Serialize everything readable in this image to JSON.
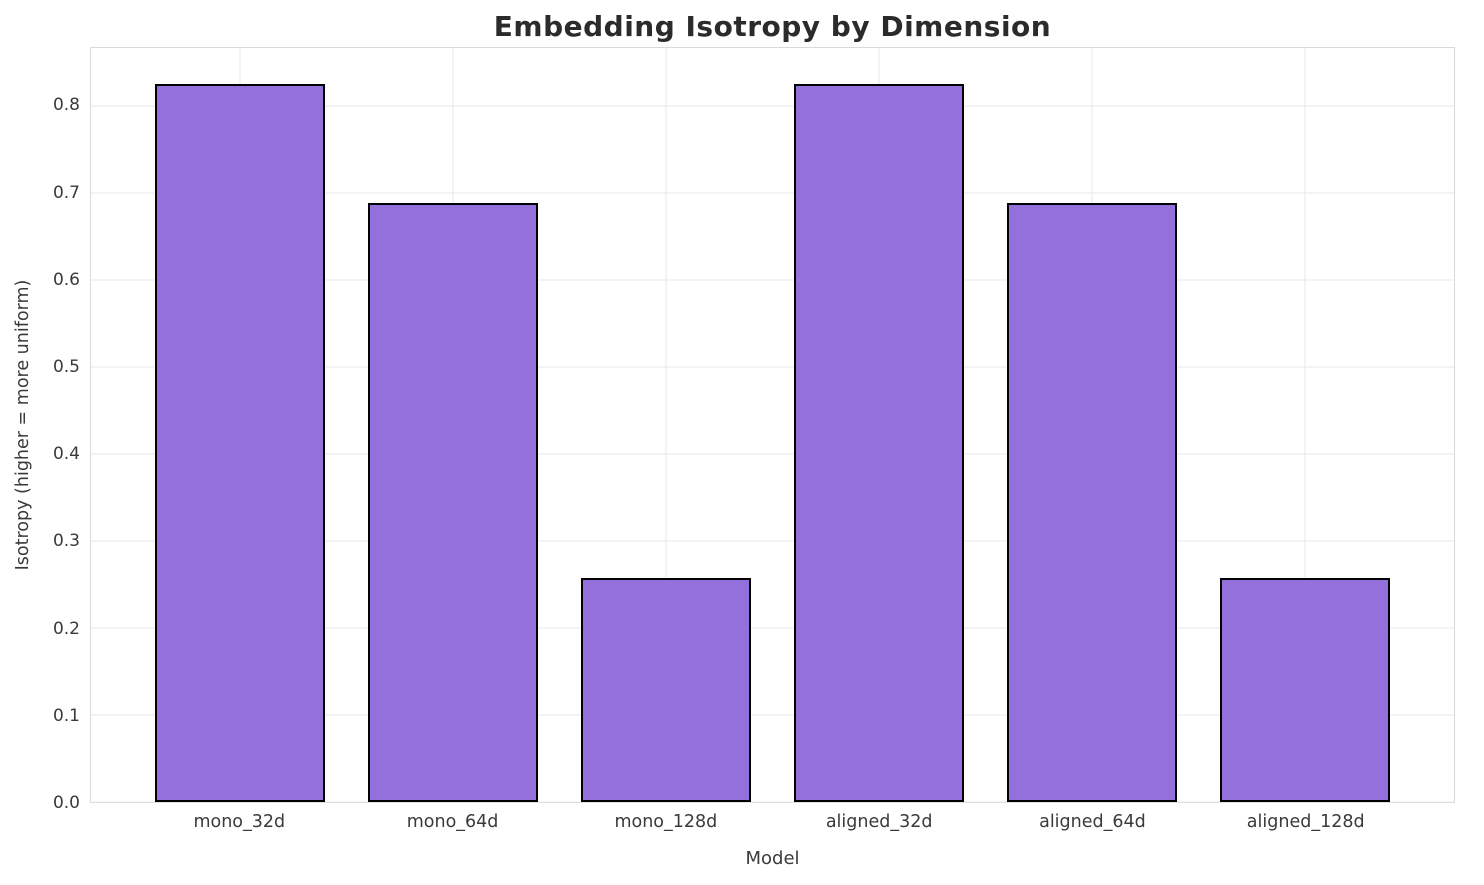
{
  "chart_data": {
    "type": "bar",
    "title": "Embedding Isotropy by Dimension",
    "xlabel": "Model",
    "ylabel": "Isotropy (higher = more uniform)",
    "categories": [
      "mono_32d",
      "mono_64d",
      "mono_128d",
      "aligned_32d",
      "aligned_64d",
      "aligned_128d"
    ],
    "values": [
      0.826,
      0.689,
      0.258,
      0.826,
      0.689,
      0.258
    ],
    "ylim": [
      0,
      0.867
    ],
    "yticks": [
      0.0,
      0.1,
      0.2,
      0.3,
      0.4,
      0.5,
      0.6,
      0.7,
      0.8
    ],
    "xlim": [
      -0.7,
      5.7
    ],
    "bar_width": 0.8,
    "grid": true,
    "legend": "none",
    "bar_color": "#9370db",
    "bar_edge_color": "#000000",
    "grid_color": "#e7e7e7",
    "text_color": "#3a3a3a"
  }
}
